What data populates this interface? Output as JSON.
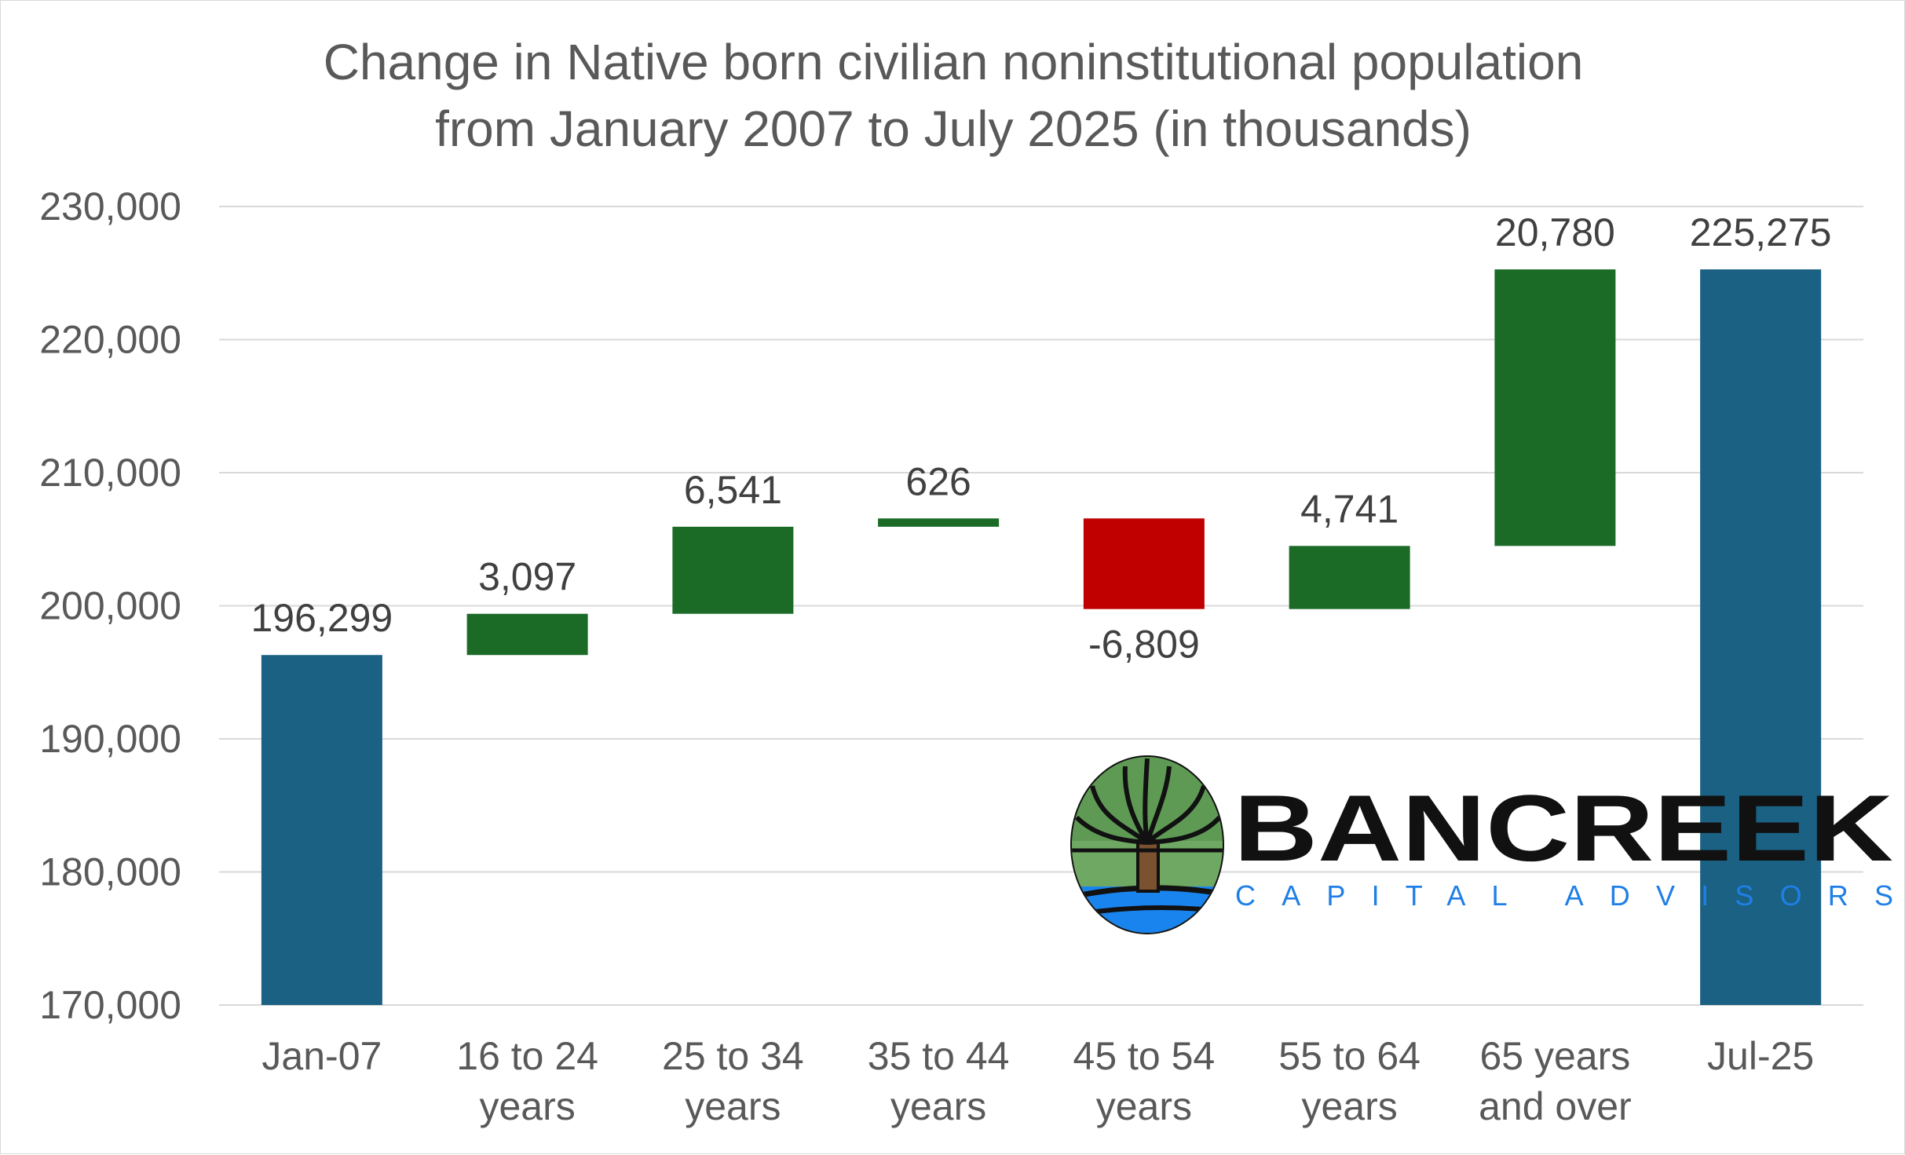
{
  "colors": {
    "total": "#1a6183",
    "increase": "#1b6b27",
    "decrease": "#c00000",
    "grid": "#d9d9d9",
    "text": "#595959"
  },
  "logo": {
    "name": "BANCREEK",
    "tagline": "CAPITAL ADVISORS"
  },
  "chart_data": {
    "type": "bar",
    "subtype": "waterfall",
    "title": [
      "Change in Native born civilian noninstitutional population",
      "from January 2007 to July 2025 (in thousands)"
    ],
    "ylim": [
      170000,
      230000
    ],
    "yticks": [
      "170,000",
      "180,000",
      "190,000",
      "200,000",
      "210,000",
      "220,000",
      "230,000"
    ],
    "ytick_values": [
      170000,
      180000,
      190000,
      200000,
      210000,
      220000,
      230000
    ],
    "grid": true,
    "legend": "none",
    "categories": [
      [
        "Jan-07"
      ],
      [
        "16 to 24",
        "years"
      ],
      [
        "25 to 34",
        "years"
      ],
      [
        "35 to 44",
        "years"
      ],
      [
        "45 to 54",
        "years"
      ],
      [
        "55 to 64",
        "years"
      ],
      [
        "65 years",
        "and over"
      ],
      [
        "Jul-25"
      ]
    ],
    "bars": [
      {
        "kind": "total",
        "start": 170000,
        "end": 196299,
        "label": "196,299"
      },
      {
        "kind": "increase",
        "start": 196299,
        "end": 199396,
        "label": "3,097"
      },
      {
        "kind": "increase",
        "start": 199396,
        "end": 205937,
        "label": "6,541"
      },
      {
        "kind": "increase",
        "start": 205937,
        "end": 206563,
        "label": "626"
      },
      {
        "kind": "decrease",
        "start": 206563,
        "end": 199754,
        "label": "-6,809"
      },
      {
        "kind": "increase",
        "start": 199754,
        "end": 204495,
        "label": "4,741"
      },
      {
        "kind": "increase",
        "start": 204495,
        "end": 225275,
        "label": "20,780"
      },
      {
        "kind": "total",
        "start": 170000,
        "end": 225275,
        "label": "225,275"
      }
    ]
  }
}
